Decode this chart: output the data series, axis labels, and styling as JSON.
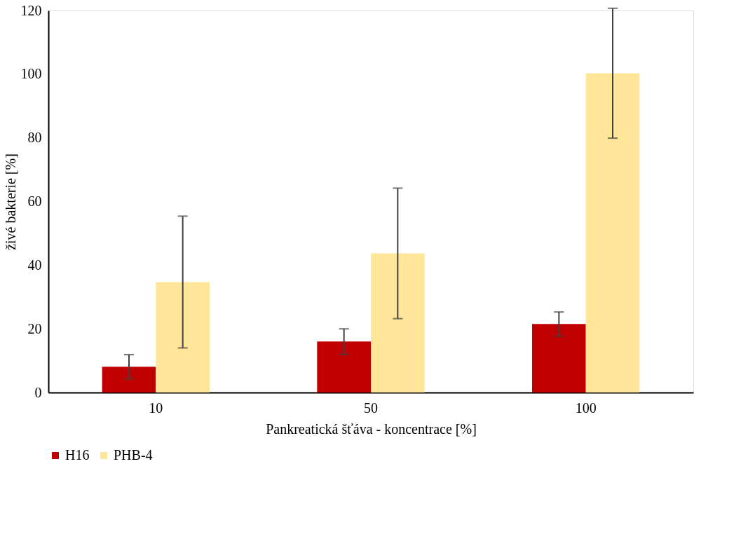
{
  "chart_data": {
    "type": "bar",
    "xlabel": "Pankreatická šťáva - koncentrace [%]",
    "ylabel": "živé bakterie [%]",
    "categories": [
      "10",
      "50",
      "100"
    ],
    "series": [
      {
        "name": "H16",
        "color": "#c00000",
        "values": [
          8.1,
          16.0,
          21.5
        ],
        "errors": [
          3.8,
          4.0,
          3.8
        ]
      },
      {
        "name": "PHB-4",
        "color": "#ffe699",
        "values": [
          34.7,
          43.7,
          100.3
        ],
        "errors": [
          20.7,
          20.5,
          20.4
        ]
      }
    ],
    "ylim": [
      0,
      120
    ],
    "yticks": [
      0,
      20,
      40,
      60,
      80,
      100,
      120
    ],
    "grid": false,
    "legend": "bottom"
  }
}
